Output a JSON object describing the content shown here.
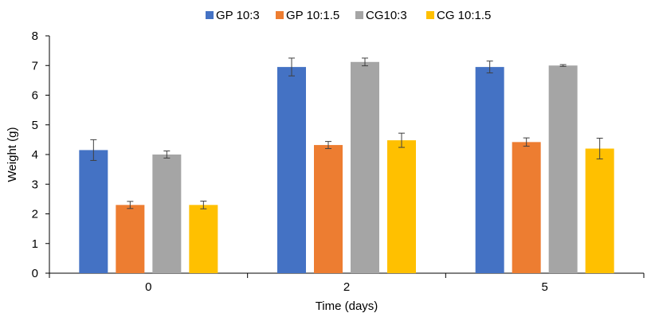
{
  "chart_data": {
    "type": "bar",
    "categories": [
      "0",
      "2",
      "5"
    ],
    "series": [
      {
        "name": "GP 10:3",
        "color": "#4472C4",
        "values": [
          4.15,
          6.95,
          6.95
        ],
        "errors": [
          0.35,
          0.3,
          0.2
        ]
      },
      {
        "name": "GP 10:1.5",
        "color": "#ED7D31",
        "values": [
          2.3,
          4.32,
          4.42
        ],
        "errors": [
          0.12,
          0.12,
          0.14
        ]
      },
      {
        "name": "CG10:3",
        "color": "#A5A5A5",
        "values": [
          4.0,
          7.12,
          7.0
        ],
        "errors": [
          0.12,
          0.13,
          0.03
        ]
      },
      {
        "name": "CG 10:1.5",
        "color": "#FFC000",
        "values": [
          2.3,
          4.48,
          4.2
        ],
        "errors": [
          0.13,
          0.24,
          0.35
        ]
      }
    ],
    "xlabel": "Time (days)",
    "ylabel": "Weight (g)",
    "ylim": [
      0,
      8
    ],
    "yticks": [
      "0",
      "1",
      "2",
      "3",
      "4",
      "5",
      "6",
      "7",
      "8"
    ],
    "grid": false,
    "legend_position": "top"
  }
}
